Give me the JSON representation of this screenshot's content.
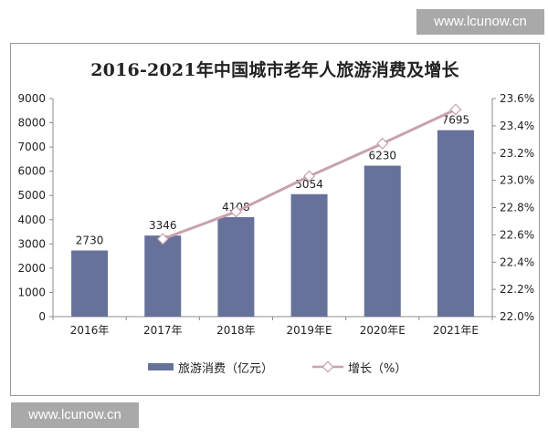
{
  "watermark": "www.lcunow.cn",
  "chart_data": {
    "type": "bar",
    "title": "2016-2021年中国城市老年人旅游消费及增长",
    "categories": [
      "2016年",
      "2017年",
      "2018年",
      "2019年E",
      "2020年E",
      "2021年E"
    ],
    "series": [
      {
        "name": "旅游消费（亿元）",
        "type": "bar",
        "axis": "left",
        "color": "#67729a",
        "values": [
          2730,
          3346,
          4108,
          5054,
          6230,
          7695
        ],
        "data_labels": [
          "2730",
          "3346",
          "4108",
          "5054",
          "6230",
          "7695"
        ]
      },
      {
        "name": "增长（%）",
        "type": "line",
        "axis": "right",
        "color": "#c8a2ad",
        "values": [
          null,
          22.57,
          22.77,
          23.03,
          23.27,
          23.52
        ]
      }
    ],
    "y_left": {
      "ylim": [
        0,
        9000
      ],
      "ticks": [
        "0",
        "1000",
        "2000",
        "3000",
        "4000",
        "5000",
        "6000",
        "7000",
        "8000",
        "9000"
      ]
    },
    "y_right": {
      "ylim": [
        22.0,
        23.6
      ],
      "ticks": [
        "22.0%",
        "22.2%",
        "22.4%",
        "22.6%",
        "22.8%",
        "23.0%",
        "23.2%",
        "23.4%",
        "23.6%"
      ]
    },
    "grid": false,
    "legend_position": "bottom"
  }
}
